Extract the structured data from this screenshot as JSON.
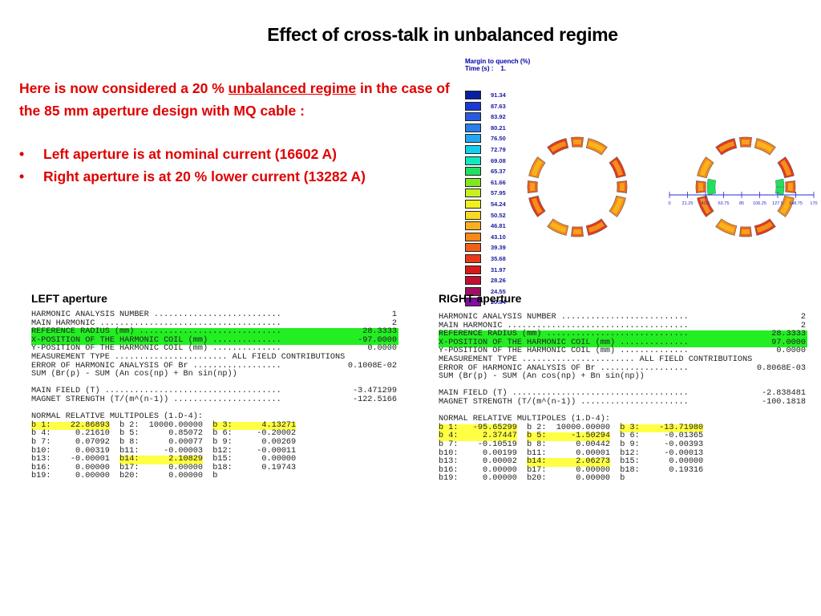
{
  "slide": {
    "title": "Effect of cross-talk in unbalanced regime",
    "intro_pre": "Here is now considered a 20 % ",
    "intro_underline": "unbalanced regime",
    "intro_post": " in the case of the 85 mm aperture design with MQ cable :",
    "bullets": [
      "Left aperture is at nominal current (16602 A)",
      "Right aperture is at 20 % lower current (13282 A)"
    ]
  },
  "legend": {
    "title": "Margin to quench (%)",
    "time_label": "Time (s) :",
    "time_value": "1.",
    "values": [
      "91.34",
      "87.63",
      "83.92",
      "80.21",
      "76.50",
      "72.79",
      "69.08",
      "65.37",
      "61.66",
      "57.95",
      "54.24",
      "50.52",
      "46.81",
      "43.10",
      "39.39",
      "35.68",
      "31.97",
      "28.26",
      "24.55",
      "20.84"
    ],
    "colors": [
      "#0a1fa0",
      "#1a3ad0",
      "#2a5ae0",
      "#2a7ee8",
      "#20a8f0",
      "#10d0f0",
      "#10e8c0",
      "#20e060",
      "#80e820",
      "#c8f020",
      "#f0f020",
      "#f8d820",
      "#f8b020",
      "#f88818",
      "#f06018",
      "#e83818",
      "#d81818",
      "#c01030",
      "#a01060",
      "#8010a0"
    ]
  },
  "magnet_axis_ticks": [
    "0",
    "21.25",
    "42.5",
    "63.75",
    "85",
    "106.25",
    "127.5",
    "148.75",
    "170"
  ],
  "left": {
    "label": "LEFT aperture",
    "lines": [
      {
        "key": "HARMONIC ANALYSIS NUMBER ..........................",
        "val": "1",
        "hl": ""
      },
      {
        "key": "MAIN HARMONIC .....................................",
        "val": "2",
        "hl": ""
      },
      {
        "key": "REFERENCE RADIUS (mm) .............................",
        "val": "28.3333",
        "hl": "g"
      },
      {
        "key": "X-POSITION OF THE HARMONIC COIL (mm) ..............",
        "val": "-97.0000",
        "hl": "g"
      },
      {
        "key": "Y-POSITION OF THE HARMONIC COIL (mm) ..............",
        "val": "0.0000",
        "hl": ""
      },
      {
        "key": "MEASUREMENT TYPE ....................... ALL FIELD CONTRIBUTIONS",
        "val": "",
        "hl": ""
      },
      {
        "key": "ERROR OF HARMONIC ANALYSIS OF Br ..................",
        "val": "0.1008E-02",
        "hl": ""
      },
      {
        "key": "SUM (Br(p) - SUM (An cos(np) + Bn sin(np))",
        "val": "",
        "hl": ""
      },
      {
        "key": "",
        "val": "",
        "hl": ""
      },
      {
        "key": "MAIN FIELD (T) ....................................",
        "val": "-3.471299",
        "hl": ""
      },
      {
        "key": "MAGNET STRENGTH (T/(m^(n-1)) ......................",
        "val": "-122.5166",
        "hl": ""
      },
      {
        "key": "",
        "val": "",
        "hl": ""
      },
      {
        "key": "NORMAL RELATIVE MULTIPOLES (1.D-4):",
        "val": "",
        "hl": ""
      }
    ],
    "multipoles": [
      [
        {
          "t": "b 1:    22.86893",
          "hl": "y"
        },
        {
          "t": "b 2:  10000.00000",
          "hl": ""
        },
        {
          "t": "b 3:      4.13271",
          "hl": "y"
        }
      ],
      [
        {
          "t": "b 4:     0.21610",
          "hl": ""
        },
        {
          "t": "b 5:      0.85072",
          "hl": ""
        },
        {
          "t": "b 6:     -0.20002",
          "hl": ""
        }
      ],
      [
        {
          "t": "b 7:     0.07092",
          "hl": ""
        },
        {
          "t": "b 8:      0.00077",
          "hl": ""
        },
        {
          "t": "b 9:      0.00269",
          "hl": ""
        }
      ],
      [
        {
          "t": "b10:     0.00319",
          "hl": ""
        },
        {
          "t": "b11:     -0.00003",
          "hl": ""
        },
        {
          "t": "b12:     -0.00011",
          "hl": ""
        }
      ],
      [
        {
          "t": "b13:    -0.00001",
          "hl": ""
        },
        {
          "t": "b14:      2.10829",
          "hl": "y"
        },
        {
          "t": "b15:      0.00000",
          "hl": ""
        }
      ],
      [
        {
          "t": "b16:     0.00000",
          "hl": ""
        },
        {
          "t": "b17:      0.00000",
          "hl": ""
        },
        {
          "t": "b18:      0.19743",
          "hl": ""
        }
      ],
      [
        {
          "t": "b19:     0.00000",
          "hl": ""
        },
        {
          "t": "b20:      0.00000",
          "hl": ""
        },
        {
          "t": "b",
          "hl": ""
        }
      ]
    ]
  },
  "right": {
    "label": "RIGHT aperture",
    "lines": [
      {
        "key": "HARMONIC ANALYSIS NUMBER ..........................",
        "val": "2",
        "hl": ""
      },
      {
        "key": "MAIN HARMONIC .....................................",
        "val": "2",
        "hl": ""
      },
      {
        "key": "REFERENCE RADIUS (mm) .............................",
        "val": "28.3333",
        "hl": "g"
      },
      {
        "key": "X-POSITION OF THE HARMONIC COIL (mm) ..............",
        "val": "97.0000",
        "hl": "g"
      },
      {
        "key": "Y-POSITION OF THE HARMONIC COIL (mm) ..............",
        "val": "0.0000",
        "hl": ""
      },
      {
        "key": "MEASUREMENT TYPE ....................... ALL FIELD CONTRIBUTIONS",
        "val": "",
        "hl": ""
      },
      {
        "key": "ERROR OF HARMONIC ANALYSIS OF Br ..................",
        "val": "0.8068E-03",
        "hl": ""
      },
      {
        "key": "SUM (Br(p) - SUM (An cos(np) + Bn sin(np))",
        "val": "",
        "hl": ""
      },
      {
        "key": "",
        "val": "",
        "hl": ""
      },
      {
        "key": "MAIN FIELD (T) ....................................",
        "val": "-2.838481",
        "hl": ""
      },
      {
        "key": "MAGNET STRENGTH (T/(m^(n-1)) ......................",
        "val": "-100.1818",
        "hl": ""
      },
      {
        "key": "",
        "val": "",
        "hl": ""
      },
      {
        "key": "NORMAL RELATIVE MULTIPOLES (1.D-4):",
        "val": "",
        "hl": ""
      }
    ],
    "multipoles": [
      [
        {
          "t": "b 1:   -95.65299",
          "hl": "y"
        },
        {
          "t": "b 2:  10000.00000",
          "hl": ""
        },
        {
          "t": "b 3:    -13.71980",
          "hl": "y"
        }
      ],
      [
        {
          "t": "b 4:     2.37447",
          "hl": "y"
        },
        {
          "t": "b 5:     -1.50294",
          "hl": "y"
        },
        {
          "t": "b 6:     -0.01365",
          "hl": ""
        }
      ],
      [
        {
          "t": "b 7:    -0.10519",
          "hl": ""
        },
        {
          "t": "b 8:      0.00442",
          "hl": ""
        },
        {
          "t": "b 9:     -0.00393",
          "hl": ""
        }
      ],
      [
        {
          "t": "b10:     0.00199",
          "hl": ""
        },
        {
          "t": "b11:      0.00001",
          "hl": ""
        },
        {
          "t": "b12:     -0.00013",
          "hl": ""
        }
      ],
      [
        {
          "t": "b13:     0.00002",
          "hl": ""
        },
        {
          "t": "b14:      2.06273",
          "hl": "y"
        },
        {
          "t": "b15:      0.00000",
          "hl": ""
        }
      ],
      [
        {
          "t": "b16:     0.00000",
          "hl": ""
        },
        {
          "t": "b17:      0.00000",
          "hl": ""
        },
        {
          "t": "b18:      0.19316",
          "hl": ""
        }
      ],
      [
        {
          "t": "b19:     0.00000",
          "hl": ""
        },
        {
          "t": "b20:      0.00000",
          "hl": ""
        },
        {
          "t": "b",
          "hl": ""
        }
      ]
    ]
  }
}
